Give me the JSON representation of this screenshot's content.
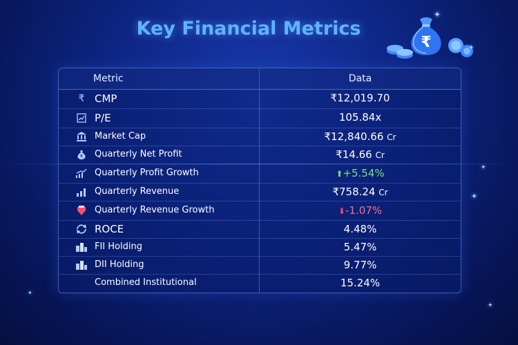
{
  "title": "Key Financial Metrics",
  "table": {
    "header": {
      "metric": "Metric",
      "data": "Data"
    },
    "rows": [
      {
        "icon": "rupee-icon",
        "label": "CMP",
        "value": "₹12,019.70",
        "trend": "none"
      },
      {
        "icon": "pe-chart-icon",
        "label": "P/E",
        "value": "105.84x",
        "trend": "none"
      },
      {
        "icon": "bank-icon",
        "label": "Market Cap",
        "value": "₹12,840.66",
        "unit": "Cr",
        "trend": "none"
      },
      {
        "icon": "money-bag-icon",
        "label": "Quarterly Net Profit",
        "value": "₹14.66",
        "unit": "Cr",
        "trend": "none"
      },
      {
        "icon": "growth-chart-icon",
        "label": "Quarterly Profit Growth",
        "value": "+5.54%",
        "trend": "up"
      },
      {
        "icon": "bar-chart-icon",
        "label": "Quarterly Revenue",
        "value": "₹758.24",
        "unit": "Cr",
        "trend": "none"
      },
      {
        "icon": "decline-icon",
        "label": "Quarterly Revenue Growth",
        "value": "-1.07%",
        "trend": "down"
      },
      {
        "icon": "cycle-icon",
        "label": "ROCE",
        "value": "4.48%",
        "trend": "none"
      },
      {
        "icon": "buildings-icon",
        "label": "FII Holding",
        "value": "5.47%",
        "trend": "none"
      },
      {
        "icon": "buildings-icon",
        "label": "DII Holding",
        "value": "9.77%",
        "trend": "none"
      },
      {
        "icon": "none",
        "label": "Combined Institutional",
        "value": "15.24%",
        "trend": "none"
      }
    ]
  },
  "colors": {
    "title": "#5fb3ff",
    "positive": "#7be07a",
    "negative": "#ff6b86",
    "background": "#0d2480"
  }
}
